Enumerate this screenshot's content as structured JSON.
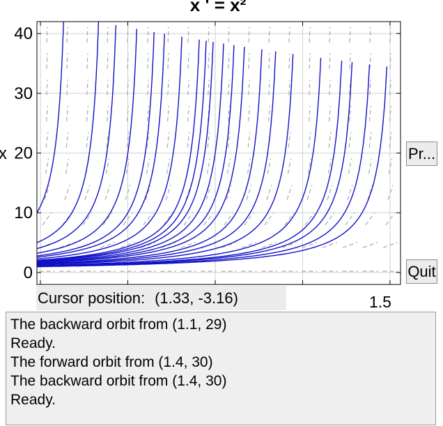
{
  "window": {
    "title": "x ' = x²"
  },
  "buttons": {
    "print_label": "Pr...",
    "quit_label": "Quit"
  },
  "cursor": {
    "label": "Cursor position:",
    "value": "(1.33, -3.16)"
  },
  "log": {
    "lines": [
      "The backward orbit from (1.1, 29)",
      "Ready.",
      "The forward orbit from (1.4, 30)",
      "The backward orbit from (1.4, 30)",
      "Ready."
    ]
  },
  "colors": {
    "solution": "#1010c8",
    "slope_field": "#a8a8a8",
    "grid": "#d0d0d0",
    "panel": "#ececec"
  },
  "chart_data": {
    "type": "line",
    "title": "x ' = x²",
    "xlabel": "",
    "ylabel": "x",
    "xlim": [
      0.49,
      1.53
    ],
    "ylim": [
      -2,
      42
    ],
    "y_ticks": [
      0,
      10,
      20,
      30,
      40
    ],
    "x_ticks": [
      0.5,
      0.75,
      1.0,
      1.25,
      1.5
    ],
    "x_tick_labels_visible": [
      "1.5"
    ],
    "grid": true,
    "equation": "x' = x^2",
    "solution_blowup_times": [
      0.59,
      0.69,
      0.74,
      0.8,
      0.85,
      0.88,
      0.93,
      0.98,
      1.0,
      1.02,
      1.05,
      1.08,
      1.11,
      1.16,
      1.2,
      1.25,
      1.33,
      1.39,
      1.42,
      1.47,
      1.52
    ]
  }
}
